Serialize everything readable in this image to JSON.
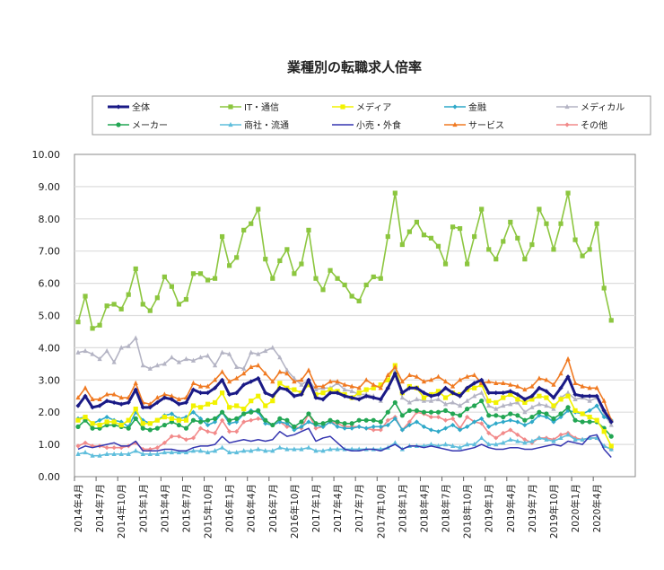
{
  "chart_data": {
    "type": "line",
    "title": "業種別の転職求人倍率",
    "xlabel": "",
    "ylabel": "",
    "ylim": [
      0,
      10
    ],
    "y_ticks": [
      "0.00",
      "1.00",
      "2.00",
      "3.00",
      "4.00",
      "5.00",
      "6.00",
      "7.00",
      "8.00",
      "9.00",
      "10.00"
    ],
    "grid": true,
    "legend_position": "top",
    "x": [
      "2014年4月",
      "2014年5月",
      "2014年6月",
      "2014年7月",
      "2014年8月",
      "2014年9月",
      "2014年10月",
      "2014年11月",
      "2014年12月",
      "2015年1月",
      "2015年2月",
      "2015年3月",
      "2015年4月",
      "2015年5月",
      "2015年6月",
      "2015年7月",
      "2015年8月",
      "2015年9月",
      "2015年10月",
      "2015年11月",
      "2015年12月",
      "2016年1月",
      "2016年2月",
      "2016年3月",
      "2016年4月",
      "2016年5月",
      "2016年6月",
      "2016年7月",
      "2016年8月",
      "2016年9月",
      "2016年10月",
      "2016年11月",
      "2016年12月",
      "2017年1月",
      "2017年2月",
      "2017年3月",
      "2017年4月",
      "2017年5月",
      "2017年6月",
      "2017年7月",
      "2017年8月",
      "2017年9月",
      "2017年10月",
      "2017年11月",
      "2017年12月",
      "2018年1月",
      "2018年2月",
      "2018年3月",
      "2018年4月",
      "2018年5月",
      "2018年6月",
      "2018年7月",
      "2018年8月",
      "2018年9月",
      "2018年10月",
      "2018年11月",
      "2018年12月",
      "2019年1月",
      "2019年2月",
      "2019年3月",
      "2019年4月",
      "2019年5月",
      "2019年6月",
      "2019年7月",
      "2019年8月",
      "2019年9月",
      "2019年10月",
      "2019年11月",
      "2019年12月",
      "2020年1月",
      "2020年2月",
      "2020年3月",
      "2020年4月",
      "2020年5月",
      "2020年6月"
    ],
    "x_tick_labels": [
      "2014年4月",
      "2014年7月",
      "2014年10月",
      "2015年1月",
      "2015年4月",
      "2015年7月",
      "2015年10月",
      "2016年1月",
      "2016年4月",
      "2016年7月",
      "2016年10月",
      "2017年1月",
      "2017年4月",
      "2017年7月",
      "2017年10月",
      "2018年1月",
      "2018年4月",
      "2018年7月",
      "2018年10月",
      "2019年1月",
      "2019年4月",
      "2019年7月",
      "2019年10月",
      "2020年1月",
      "2020年4月"
    ],
    "series": [
      {
        "name": "全体",
        "color": "#1a1a86",
        "marker": "diamond",
        "values": [
          2.2,
          2.5,
          2.15,
          2.2,
          2.35,
          2.3,
          2.25,
          2.3,
          2.7,
          2.15,
          2.15,
          2.3,
          2.45,
          2.4,
          2.25,
          2.3,
          2.7,
          2.6,
          2.6,
          2.75,
          3.0,
          2.55,
          2.6,
          2.85,
          2.95,
          3.05,
          2.6,
          2.5,
          2.75,
          2.7,
          2.5,
          2.55,
          3.0,
          2.45,
          2.4,
          2.6,
          2.6,
          2.5,
          2.45,
          2.4,
          2.5,
          2.45,
          2.4,
          2.75,
          3.2,
          2.6,
          2.75,
          2.75,
          2.6,
          2.5,
          2.55,
          2.75,
          2.6,
          2.5,
          2.75,
          2.9,
          3.0,
          2.6,
          2.6,
          2.6,
          2.65,
          2.55,
          2.4,
          2.5,
          2.75,
          2.65,
          2.45,
          2.75,
          3.1,
          2.55,
          2.5,
          2.5,
          2.5,
          2.05,
          1.7
        ]
      },
      {
        "name": "IT・通信",
        "color": "#8cc63f",
        "marker": "square",
        "values": [
          4.8,
          5.6,
          4.6,
          4.7,
          5.3,
          5.35,
          5.2,
          5.65,
          6.45,
          5.35,
          5.15,
          5.55,
          6.2,
          5.9,
          5.35,
          5.5,
          6.3,
          6.3,
          6.1,
          6.15,
          7.45,
          6.55,
          6.8,
          7.65,
          7.85,
          8.3,
          6.75,
          6.15,
          6.7,
          7.05,
          6.3,
          6.6,
          7.65,
          6.15,
          5.8,
          6.4,
          6.15,
          5.95,
          5.6,
          5.45,
          5.95,
          6.2,
          6.15,
          7.45,
          8.8,
          7.2,
          7.6,
          7.9,
          7.5,
          7.4,
          7.15,
          6.6,
          7.75,
          7.7,
          6.6,
          7.45,
          8.3,
          7.05,
          6.75,
          7.3,
          7.9,
          7.4,
          6.75,
          7.2,
          8.3,
          7.85,
          7.05,
          7.85,
          8.8,
          7.35,
          6.85,
          7.05,
          7.85,
          5.85,
          4.85
        ]
      },
      {
        "name": "メディア",
        "color": "#f2f200",
        "marker": "square",
        "values": [
          1.75,
          1.85,
          1.65,
          1.6,
          1.7,
          1.7,
          1.6,
          1.75,
          2.1,
          1.65,
          1.65,
          1.75,
          1.85,
          1.8,
          1.75,
          1.75,
          2.2,
          2.15,
          2.25,
          2.3,
          2.6,
          2.15,
          2.2,
          2.1,
          2.35,
          2.5,
          2.2,
          2.35,
          2.9,
          2.75,
          2.7,
          2.6,
          2.85,
          2.55,
          2.6,
          2.7,
          2.65,
          2.55,
          2.45,
          2.6,
          2.7,
          2.75,
          2.85,
          3.0,
          3.45,
          2.6,
          2.8,
          2.75,
          2.45,
          2.55,
          2.65,
          2.45,
          2.6,
          2.55,
          2.7,
          2.75,
          2.85,
          2.35,
          2.3,
          2.45,
          2.55,
          2.4,
          2.3,
          2.4,
          2.5,
          2.45,
          2.2,
          2.4,
          2.5,
          2.05,
          1.95,
          1.85,
          1.75,
          1.4,
          0.95
        ]
      },
      {
        "name": "金融",
        "color": "#2fa9c9",
        "marker": "diamond",
        "values": [
          1.8,
          1.85,
          1.65,
          1.75,
          1.85,
          1.75,
          1.7,
          1.55,
          2.0,
          1.75,
          1.65,
          1.75,
          1.9,
          1.95,
          1.8,
          1.85,
          2.0,
          1.8,
          1.6,
          1.7,
          2.0,
          1.65,
          1.7,
          1.95,
          2.05,
          2.0,
          1.65,
          1.6,
          1.7,
          1.65,
          1.45,
          1.55,
          1.7,
          1.6,
          1.55,
          1.7,
          1.55,
          1.5,
          1.5,
          1.55,
          1.5,
          1.55,
          1.55,
          1.6,
          1.8,
          1.45,
          1.6,
          1.7,
          1.55,
          1.45,
          1.4,
          1.5,
          1.6,
          1.45,
          1.55,
          1.7,
          1.8,
          1.55,
          1.65,
          1.7,
          1.75,
          1.7,
          1.6,
          1.7,
          1.9,
          1.85,
          1.7,
          1.85,
          2.05,
          2.0,
          1.95,
          2.05,
          2.2,
          1.85,
          1.75
        ]
      },
      {
        "name": "メディカル",
        "color": "#b4b4c4",
        "marker": "triangle",
        "values": [
          3.85,
          3.9,
          3.8,
          3.65,
          3.9,
          3.55,
          4.0,
          4.05,
          4.3,
          3.45,
          3.35,
          3.45,
          3.5,
          3.7,
          3.55,
          3.65,
          3.6,
          3.7,
          3.75,
          3.45,
          3.85,
          3.8,
          3.4,
          3.35,
          3.85,
          3.8,
          3.9,
          4.0,
          3.7,
          3.3,
          3.05,
          2.85,
          3.0,
          2.7,
          2.75,
          2.75,
          2.9,
          2.7,
          2.65,
          2.55,
          2.55,
          2.5,
          2.35,
          2.75,
          3.3,
          2.45,
          2.3,
          2.4,
          2.35,
          2.35,
          2.4,
          2.25,
          2.3,
          2.2,
          2.35,
          2.5,
          2.6,
          2.2,
          2.1,
          2.2,
          2.25,
          2.3,
          2.0,
          2.15,
          2.25,
          2.2,
          2.1,
          2.45,
          2.6,
          2.4,
          2.45,
          2.35,
          2.45,
          1.95,
          1.6
        ]
      },
      {
        "name": "メーカー",
        "color": "#22a653",
        "marker": "circle",
        "values": [
          1.55,
          1.75,
          1.5,
          1.5,
          1.6,
          1.6,
          1.55,
          1.5,
          1.8,
          1.5,
          1.45,
          1.5,
          1.6,
          1.7,
          1.6,
          1.5,
          1.75,
          1.7,
          1.75,
          1.8,
          2.0,
          1.75,
          1.8,
          1.95,
          2.0,
          2.05,
          1.75,
          1.6,
          1.8,
          1.75,
          1.55,
          1.7,
          1.95,
          1.65,
          1.65,
          1.75,
          1.7,
          1.65,
          1.65,
          1.75,
          1.75,
          1.75,
          1.7,
          2.0,
          2.3,
          1.9,
          2.05,
          2.05,
          2.0,
          2.0,
          2.0,
          2.05,
          1.95,
          1.9,
          2.1,
          2.2,
          2.35,
          1.9,
          1.9,
          1.85,
          1.95,
          1.9,
          1.75,
          1.85,
          2.0,
          1.95,
          1.8,
          1.95,
          2.15,
          1.75,
          1.7,
          1.7,
          1.7,
          1.5,
          1.25
        ]
      },
      {
        "name": "商社・流通",
        "color": "#5fbedc",
        "marker": "triangle",
        "values": [
          0.7,
          0.75,
          0.65,
          0.65,
          0.7,
          0.7,
          0.7,
          0.7,
          0.8,
          0.7,
          0.7,
          0.7,
          0.75,
          0.75,
          0.75,
          0.75,
          0.8,
          0.8,
          0.75,
          0.8,
          0.9,
          0.75,
          0.75,
          0.8,
          0.8,
          0.85,
          0.8,
          0.8,
          0.9,
          0.85,
          0.85,
          0.85,
          0.9,
          0.8,
          0.8,
          0.85,
          0.85,
          0.85,
          0.85,
          0.85,
          0.85,
          0.85,
          0.85,
          0.9,
          1.05,
          0.85,
          0.95,
          0.95,
          0.95,
          1.0,
          0.95,
          1.0,
          0.95,
          0.9,
          1.0,
          1.0,
          1.2,
          1.0,
          1.0,
          1.05,
          1.15,
          1.1,
          1.05,
          1.1,
          1.2,
          1.15,
          1.1,
          1.2,
          1.3,
          1.15,
          1.15,
          1.2,
          1.2,
          0.95,
          0.85
        ]
      },
      {
        "name": "小売・外食",
        "color": "#3535b0",
        "marker": "none",
        "values": [
          0.85,
          0.95,
          0.9,
          0.95,
          1.0,
          1.05,
          0.95,
          0.95,
          1.1,
          0.8,
          0.8,
          0.8,
          0.85,
          0.85,
          0.8,
          0.8,
          0.9,
          0.95,
          0.95,
          1.0,
          1.25,
          1.05,
          1.1,
          1.15,
          1.1,
          1.15,
          1.1,
          1.15,
          1.4,
          1.25,
          1.3,
          1.4,
          1.5,
          1.1,
          1.2,
          1.25,
          1.05,
          0.85,
          0.8,
          0.8,
          0.85,
          0.85,
          0.8,
          0.9,
          1.0,
          0.85,
          0.95,
          0.95,
          0.9,
          0.95,
          0.9,
          0.85,
          0.8,
          0.8,
          0.85,
          0.9,
          1.0,
          0.9,
          0.85,
          0.85,
          0.9,
          0.9,
          0.85,
          0.85,
          0.9,
          0.95,
          1.0,
          0.95,
          1.1,
          1.05,
          1.0,
          1.25,
          1.3,
          0.85,
          0.6
        ]
      },
      {
        "name": "サービス",
        "color": "#f07a22",
        "marker": "triangle",
        "values": [
          2.45,
          2.75,
          2.4,
          2.4,
          2.55,
          2.55,
          2.45,
          2.45,
          2.9,
          2.3,
          2.25,
          2.45,
          2.55,
          2.5,
          2.4,
          2.45,
          2.9,
          2.8,
          2.8,
          3.0,
          3.25,
          2.95,
          3.05,
          3.2,
          3.4,
          3.45,
          3.2,
          2.95,
          3.25,
          3.2,
          2.95,
          3.0,
          3.3,
          2.8,
          2.8,
          2.95,
          2.95,
          2.85,
          2.8,
          2.75,
          3.0,
          2.85,
          2.75,
          3.15,
          3.4,
          2.95,
          3.15,
          3.1,
          2.95,
          3.0,
          3.1,
          2.95,
          2.8,
          3.0,
          3.1,
          3.15,
          2.9,
          2.95,
          2.9,
          2.9,
          2.85,
          2.8,
          2.7,
          2.8,
          3.05,
          3.0,
          2.85,
          3.2,
          3.65,
          2.9,
          2.8,
          2.75,
          2.75,
          2.35,
          1.75
        ]
      },
      {
        "name": "その他",
        "color": "#f28a8a",
        "marker": "diamond",
        "values": [
          0.95,
          1.05,
          0.95,
          0.95,
          0.9,
          0.9,
          0.9,
          0.95,
          1.05,
          0.85,
          0.85,
          0.9,
          1.05,
          1.25,
          1.25,
          1.15,
          1.2,
          1.5,
          1.4,
          1.35,
          1.75,
          1.4,
          1.4,
          1.7,
          1.75,
          1.8,
          1.75,
          1.6,
          1.7,
          1.55,
          1.55,
          1.5,
          1.95,
          1.5,
          1.55,
          1.7,
          1.65,
          1.55,
          1.55,
          1.55,
          1.5,
          1.45,
          1.45,
          1.75,
          1.85,
          1.45,
          1.7,
          2.0,
          1.95,
          1.85,
          1.85,
          1.75,
          1.8,
          1.5,
          1.85,
          1.7,
          1.65,
          1.35,
          1.2,
          1.35,
          1.45,
          1.3,
          1.15,
          1.05,
          1.2,
          1.2,
          1.15,
          1.3,
          1.35,
          1.2,
          1.15,
          1.2,
          1.2,
          0.95,
          0.85
        ]
      }
    ]
  }
}
